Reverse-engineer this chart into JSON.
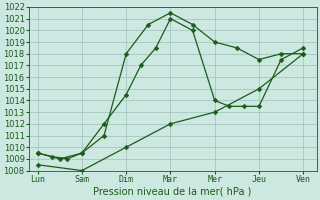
{
  "x_labels": [
    "Lun",
    "Sam",
    "Dim",
    "Mar",
    "Mer",
    "Jeu",
    "Ven"
  ],
  "x_positions": [
    0,
    1,
    2,
    3,
    4,
    5,
    6
  ],
  "series1_x": [
    0,
    0.33,
    0.67,
    1,
    1.5,
    2,
    2.5,
    3,
    3.5,
    4,
    4.5,
    5,
    5.5,
    6
  ],
  "series1_y": [
    1009.5,
    1009.2,
    1009.0,
    1009.5,
    1011.0,
    1018.0,
    1020.5,
    1021.5,
    1020.5,
    1019.0,
    1018.5,
    1017.5,
    1018.0,
    1018.0
  ],
  "series2_x": [
    0,
    0.5,
    1,
    1.5,
    2,
    2.33,
    2.67,
    3,
    3.5,
    4,
    4.33,
    4.67,
    5,
    5.5,
    6
  ],
  "series2_y": [
    1009.5,
    1009.0,
    1009.5,
    1012.0,
    1014.5,
    1017.0,
    1018.5,
    1021.0,
    1020.0,
    1014.0,
    1013.5,
    1013.5,
    1013.5,
    1017.5,
    1018.5
  ],
  "series3_x": [
    0,
    1,
    2,
    3,
    4,
    5,
    6
  ],
  "series3_y": [
    1008.5,
    1008.0,
    1010.0,
    1012.0,
    1013.0,
    1015.0,
    1018.0
  ],
  "ylabel": "Pression niveau de la mer( hPa )",
  "ylim_min": 1008,
  "ylim_max": 1022,
  "grid_color": "#9dbfb8",
  "bg_color": "#cce8e0",
  "line_color": "#1a5c1a",
  "marker_color": "#1a5c1a",
  "tick_color": "#1a5c1a",
  "tick_fontsize": 6,
  "xlabel_fontsize": 7,
  "marker_size": 2.5
}
